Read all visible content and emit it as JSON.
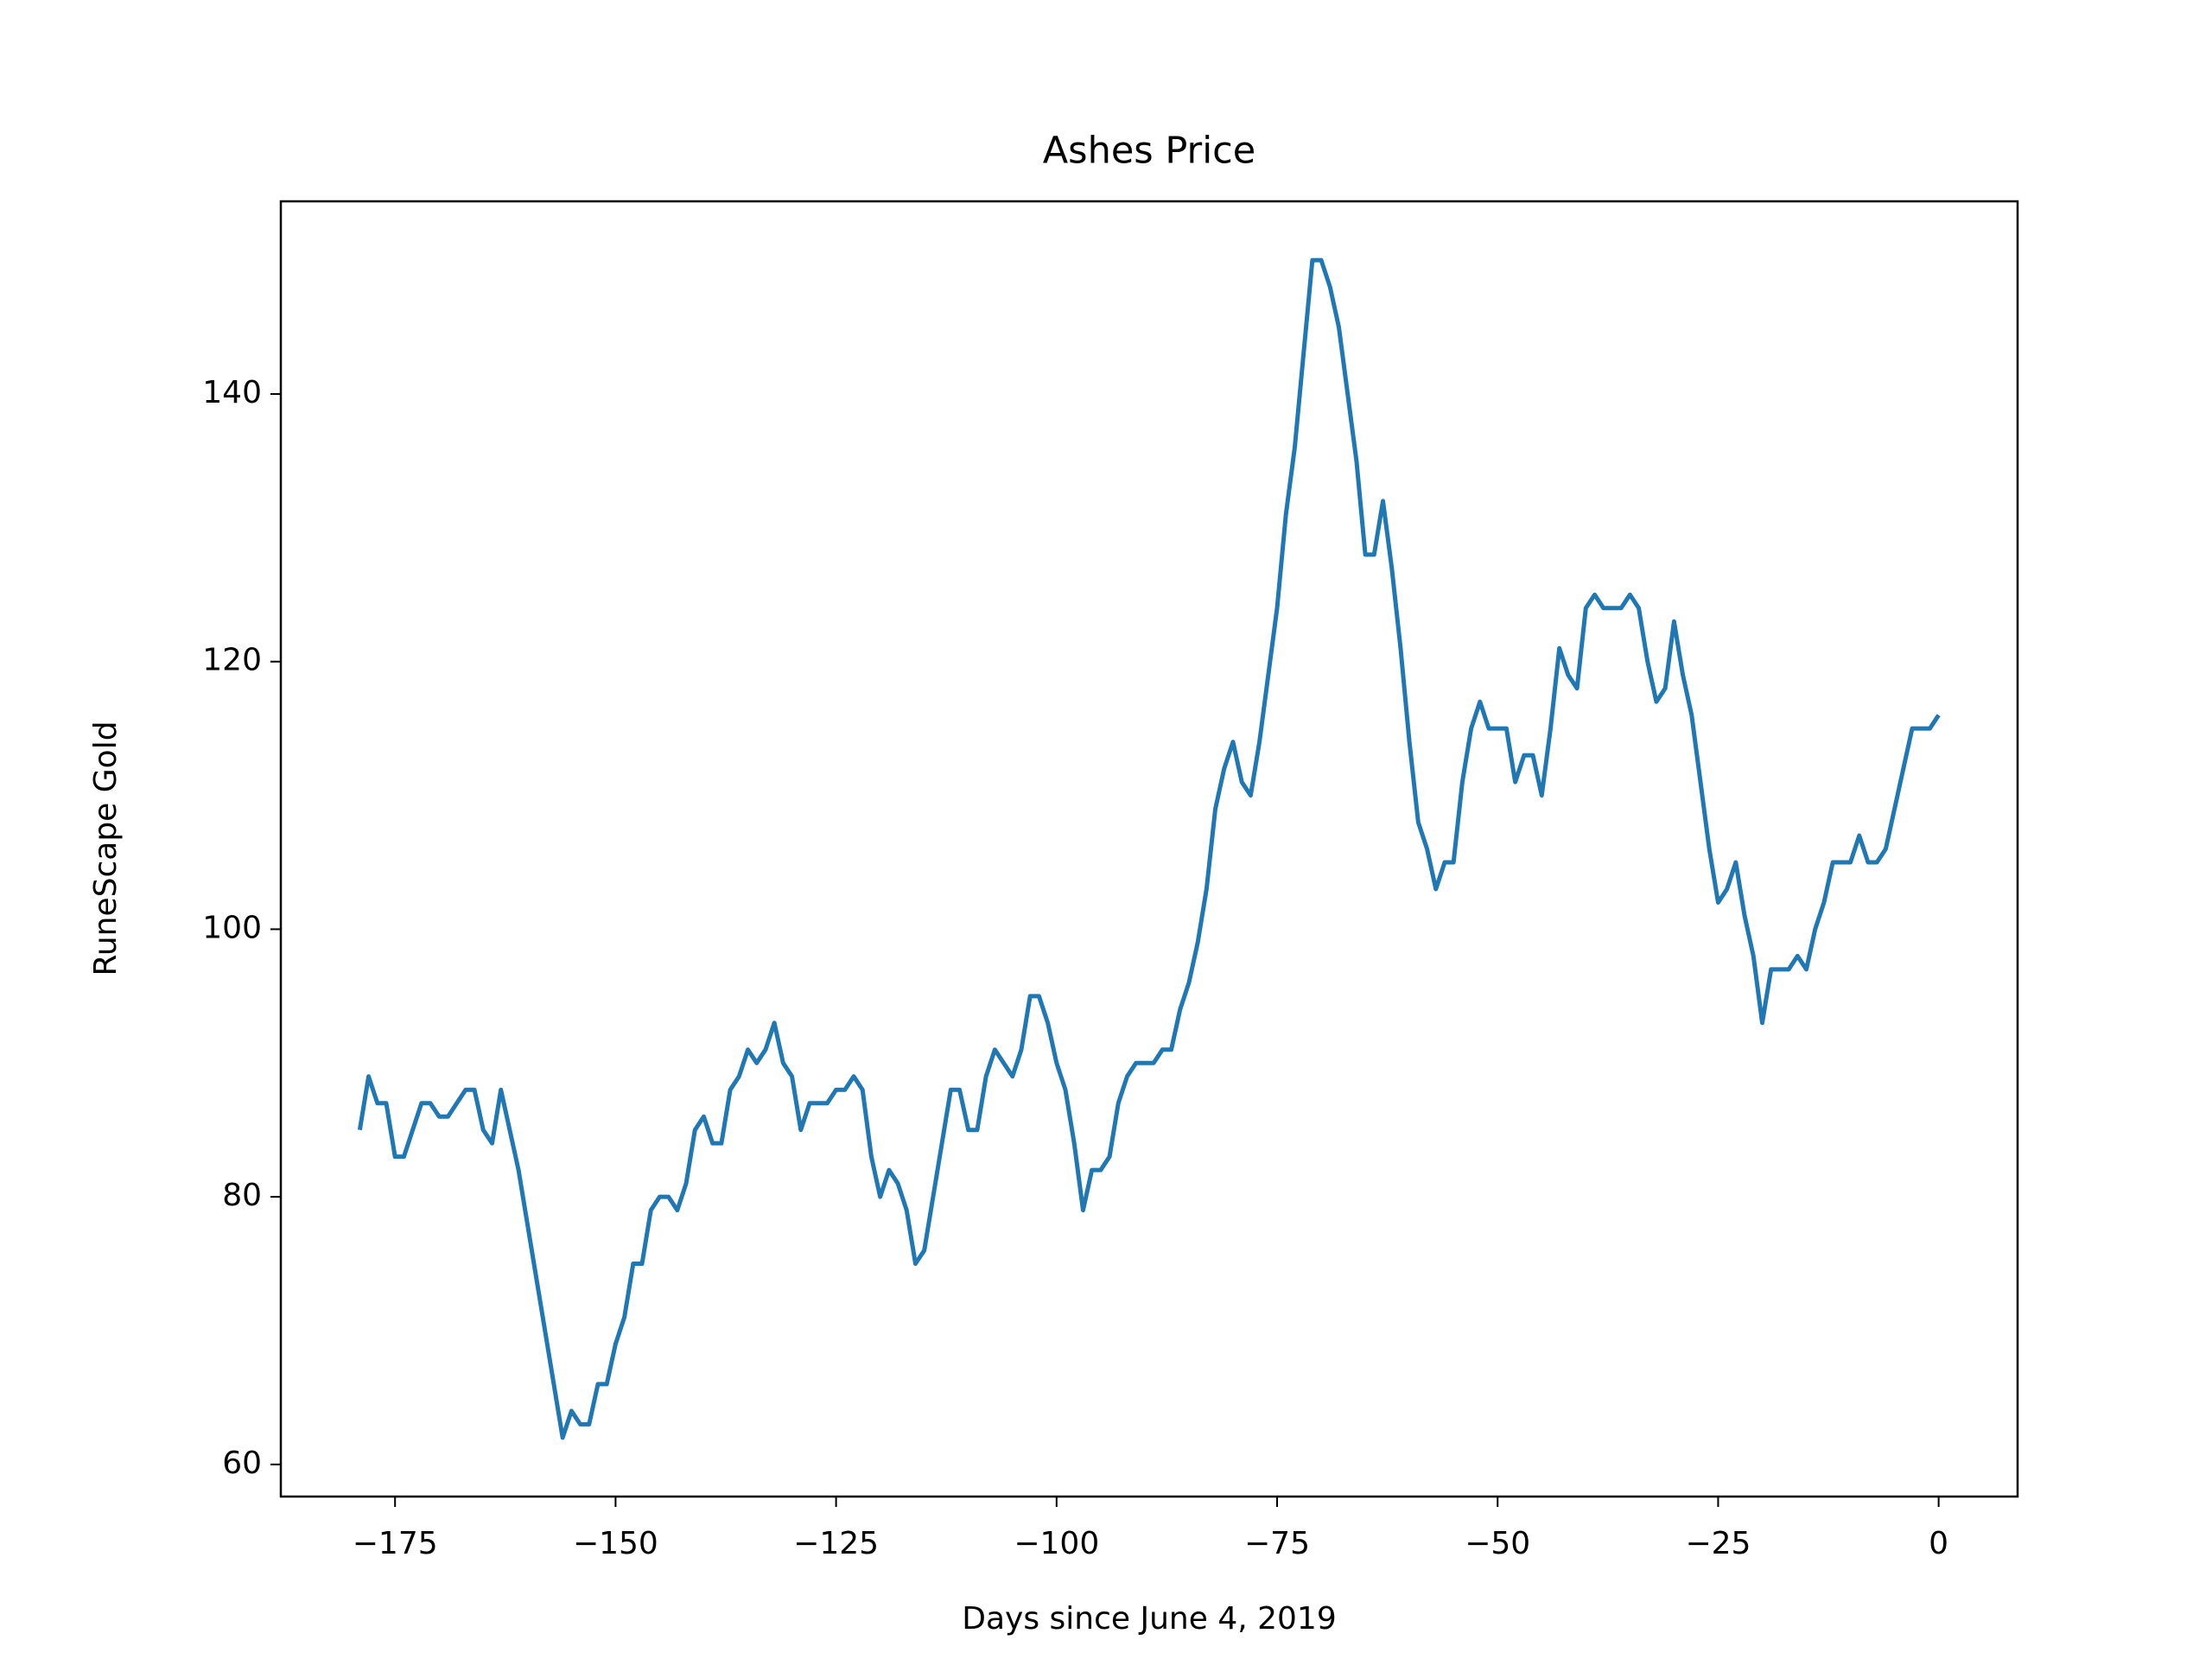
{
  "chart_data": {
    "type": "line",
    "title": "Ashes Price",
    "xlabel": "Days since June 4, 2019",
    "ylabel": "RuneScape Gold",
    "color": "#1f77b4",
    "x": [
      -179,
      -178,
      -177,
      -176,
      -175,
      -174,
      -173,
      -172,
      -171,
      -170,
      -169,
      -168,
      -167,
      -166,
      -165,
      -164,
      -163,
      -162,
      -161,
      -160,
      -159,
      -158,
      -157,
      -156,
      -155,
      -154,
      -153,
      -152,
      -151,
      -150,
      -149,
      -148,
      -147,
      -146,
      -145,
      -144,
      -143,
      -142,
      -141,
      -140,
      -139,
      -138,
      -137,
      -136,
      -135,
      -134,
      -133,
      -132,
      -131,
      -130,
      -129,
      -128,
      -127,
      -126,
      -125,
      -124,
      -123,
      -122,
      -121,
      -120,
      -119,
      -118,
      -117,
      -116,
      -115,
      -114,
      -113,
      -112,
      -111,
      -110,
      -109,
      -108,
      -107,
      -106,
      -105,
      -104,
      -103,
      -102,
      -101,
      -100,
      -99,
      -98,
      -97,
      -96,
      -95,
      -94,
      -93,
      -92,
      -91,
      -90,
      -89,
      -88,
      -87,
      -86,
      -85,
      -84,
      -83,
      -82,
      -81,
      -80,
      -79,
      -78,
      -77,
      -76,
      -75,
      -74,
      -73,
      -72,
      -71,
      -70,
      -69,
      -68,
      -67,
      -66,
      -65,
      -64,
      -63,
      -62,
      -61,
      -60,
      -59,
      -58,
      -57,
      -56,
      -55,
      -54,
      -53,
      -52,
      -51,
      -50,
      -49,
      -48,
      -47,
      -46,
      -45,
      -44,
      -43,
      -42,
      -41,
      -40,
      -39,
      -38,
      -37,
      -36,
      -35,
      -34,
      -33,
      -32,
      -31,
      -30,
      -29,
      -28,
      -27,
      -26,
      -25,
      -24,
      -23,
      -22,
      -21,
      -20,
      -19,
      -18,
      -17,
      -16,
      -15,
      -14,
      -13,
      -12,
      -11,
      -10,
      -9,
      -8,
      -7,
      -6,
      -5,
      -4,
      -3,
      -2,
      -1,
      0
    ],
    "values": [
      85,
      89,
      87,
      87,
      83,
      83,
      85,
      87,
      87,
      86,
      86,
      87,
      88,
      88,
      85,
      84,
      88,
      85,
      82,
      78,
      74,
      70,
      66,
      62,
      64,
      63,
      63,
      66,
      66,
      69,
      71,
      75,
      75,
      79,
      80,
      80,
      79,
      81,
      85,
      86,
      84,
      84,
      88,
      89,
      91,
      90,
      91,
      93,
      90,
      89,
      85,
      87,
      87,
      87,
      88,
      88,
      89,
      88,
      83,
      80,
      82,
      81,
      79,
      75,
      76,
      80,
      84,
      88,
      88,
      85,
      85,
      89,
      91,
      90,
      89,
      91,
      95,
      95,
      93,
      90,
      88,
      84,
      79,
      82,
      82,
      83,
      87,
      89,
      90,
      90,
      90,
      91,
      91,
      94,
      96,
      99,
      103,
      109,
      112,
      114,
      111,
      110,
      114,
      119,
      124,
      131,
      136,
      143,
      150,
      150,
      148,
      145,
      140,
      135,
      128,
      128,
      132,
      127,
      121,
      114,
      108,
      106,
      103,
      105,
      105,
      111,
      115,
      117,
      115,
      115,
      115,
      111,
      113,
      113,
      110,
      115,
      121,
      119,
      118,
      124,
      125,
      124,
      124,
      124,
      125,
      124,
      120,
      117,
      118,
      123,
      119,
      116,
      111,
      106,
      102,
      103,
      105,
      101,
      98,
      93,
      97,
      97,
      97,
      98,
      97,
      100,
      102,
      105,
      105,
      105,
      107,
      105,
      105,
      106,
      109,
      112,
      115,
      115,
      115,
      116
    ],
    "xlim": [
      -187.95,
      8.95
    ],
    "xticks": [
      {
        "value": -175,
        "label": "−175"
      },
      {
        "value": -150,
        "label": "−150"
      },
      {
        "value": -125,
        "label": "−125"
      },
      {
        "value": -100,
        "label": "−100"
      },
      {
        "value": -75,
        "label": "−75"
      },
      {
        "value": -50,
        "label": "−50"
      },
      {
        "value": -25,
        "label": "−25"
      },
      0
    ],
    "ylim": [
      57.6,
      154.4
    ],
    "yticks": [
      60,
      80,
      100,
      120,
      140
    ]
  }
}
